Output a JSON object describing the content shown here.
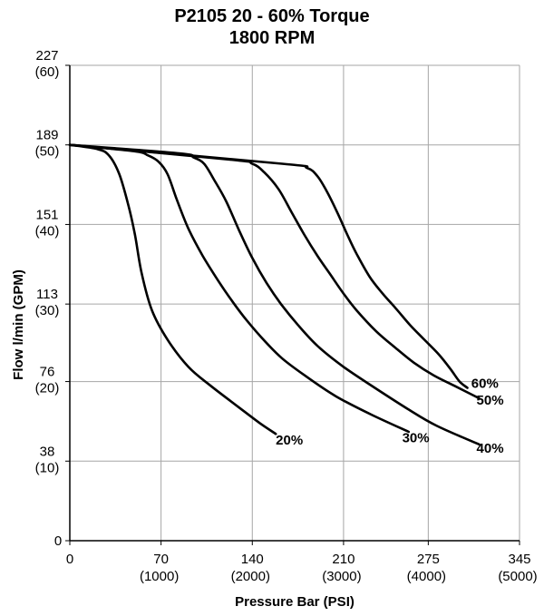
{
  "chart_data": {
    "type": "line",
    "title": "P2105 20 - 60% Torque",
    "subtitle": "1800 RPM",
    "xlabel": "Pressure Bar (PSI)",
    "ylabel": "Flow l/min (GPM)",
    "xlim": [
      0,
      345
    ],
    "ylim": [
      0,
      227
    ],
    "grid": true,
    "x_ticks": [
      {
        "value": 0,
        "label": "0",
        "sublabel": ""
      },
      {
        "value": 70,
        "label": "70",
        "sublabel": "(1000)"
      },
      {
        "value": 140,
        "label": "140",
        "sublabel": "(2000)"
      },
      {
        "value": 210,
        "label": "210",
        "sublabel": "(3000)"
      },
      {
        "value": 275,
        "label": "275",
        "sublabel": "(4000)"
      },
      {
        "value": 345,
        "label": "345",
        "sublabel": "(5000)"
      }
    ],
    "y_ticks": [
      {
        "value": 0,
        "label": "0",
        "sublabel": ""
      },
      {
        "value": 38,
        "label": "38",
        "sublabel": "(10)"
      },
      {
        "value": 76,
        "label": "76",
        "sublabel": "(20)"
      },
      {
        "value": 113,
        "label": "113",
        "sublabel": "(30)"
      },
      {
        "value": 151,
        "label": "151",
        "sublabel": "(40)"
      },
      {
        "value": 189,
        "label": "189",
        "sublabel": "(50)"
      },
      {
        "value": 227,
        "label": "227",
        "sublabel": "(60)"
      }
    ],
    "series": [
      {
        "name": "20%",
        "points": [
          [
            0,
            189
          ],
          [
            21,
            187
          ],
          [
            30,
            184
          ],
          [
            38,
            175
          ],
          [
            45,
            160
          ],
          [
            50,
            146
          ],
          [
            55,
            128
          ],
          [
            63,
            110
          ],
          [
            75,
            96
          ],
          [
            91,
            83
          ],
          [
            108,
            74
          ],
          [
            129,
            64
          ],
          [
            146,
            56
          ],
          [
            158,
            51
          ]
        ]
      },
      {
        "name": "30%",
        "points": [
          [
            0,
            189
          ],
          [
            49,
            186
          ],
          [
            60,
            184
          ],
          [
            68,
            181
          ],
          [
            75,
            175
          ],
          [
            82,
            163
          ],
          [
            91,
            149
          ],
          [
            102,
            136
          ],
          [
            114,
            124
          ],
          [
            125,
            114
          ],
          [
            136,
            105
          ],
          [
            150,
            95
          ],
          [
            163,
            87
          ],
          [
            180,
            79
          ],
          [
            204,
            69
          ],
          [
            232,
            60
          ],
          [
            260,
            52
          ]
        ]
      },
      {
        "name": "40%",
        "points": [
          [
            0,
            189
          ],
          [
            84,
            185
          ],
          [
            95,
            183
          ],
          [
            103,
            180
          ],
          [
            111,
            172
          ],
          [
            120,
            162
          ],
          [
            130,
            148
          ],
          [
            140,
            135
          ],
          [
            151,
            123
          ],
          [
            162,
            113
          ],
          [
            175,
            103
          ],
          [
            190,
            93
          ],
          [
            210,
            83
          ],
          [
            234,
            73
          ],
          [
            259,
            63
          ],
          [
            281,
            55
          ],
          [
            314,
            46
          ]
        ]
      },
      {
        "name": "50%",
        "points": [
          [
            0,
            189
          ],
          [
            123,
            182
          ],
          [
            140,
            180
          ],
          [
            149,
            176
          ],
          [
            160,
            168
          ],
          [
            170,
            157
          ],
          [
            180,
            146
          ],
          [
            190,
            136
          ],
          [
            200,
            127
          ],
          [
            210,
            118
          ],
          [
            220,
            110
          ],
          [
            235,
            100
          ],
          [
            250,
            92
          ],
          [
            264,
            85
          ],
          [
            279,
            79
          ],
          [
            295,
            74
          ],
          [
            314,
            68
          ]
        ]
      },
      {
        "name": "60%",
        "points": [
          [
            0,
            189
          ],
          [
            163,
            180
          ],
          [
            182,
            178
          ],
          [
            190,
            174
          ],
          [
            197,
            167
          ],
          [
            205,
            157
          ],
          [
            213,
            146
          ],
          [
            220,
            137
          ],
          [
            230,
            126
          ],
          [
            240,
            118
          ],
          [
            250,
            111
          ],
          [
            261,
            103
          ],
          [
            272,
            96
          ],
          [
            283,
            89
          ],
          [
            292,
            82
          ],
          [
            299,
            76
          ],
          [
            305,
            73
          ]
        ]
      }
    ],
    "series_label_positions": [
      {
        "name": "20%",
        "x": 158,
        "y": 46
      },
      {
        "name": "30%",
        "x": 255,
        "y": 47
      },
      {
        "name": "40%",
        "x": 312,
        "y": 42
      },
      {
        "name": "50%",
        "x": 312,
        "y": 65
      },
      {
        "name": "60%",
        "x": 308,
        "y": 73
      }
    ]
  }
}
